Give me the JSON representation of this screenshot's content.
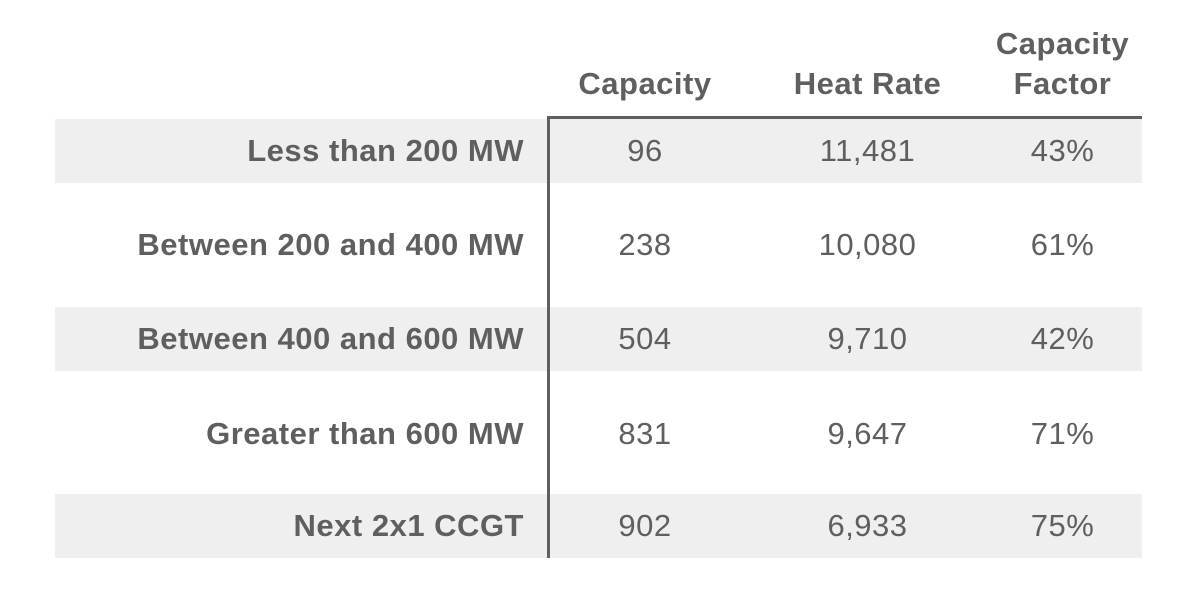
{
  "chart_data": {
    "type": "table",
    "columns": [
      "Capacity",
      "Heat Rate",
      "Capacity\nFactor"
    ],
    "rows": [
      {
        "label": "Less than 200 MW",
        "capacity": "96",
        "heat_rate": "11,481",
        "capacity_factor": "43%"
      },
      {
        "label": "Between 200 and 400 MW",
        "capacity": "238",
        "heat_rate": "10,080",
        "capacity_factor": "61%"
      },
      {
        "label": "Between 400 and 600 MW",
        "capacity": "504",
        "heat_rate": "9,710",
        "capacity_factor": "42%"
      },
      {
        "label": "Greater than 600 MW",
        "capacity": "831",
        "heat_rate": "9,647",
        "capacity_factor": "71%"
      },
      {
        "label": "Next 2x1 CCGT",
        "capacity": "902",
        "heat_rate": "6,933",
        "capacity_factor": "75%"
      }
    ],
    "colors": {
      "text": "#5f5f61",
      "shaded_row": "#efefef",
      "rule": "#5f5f61"
    }
  }
}
